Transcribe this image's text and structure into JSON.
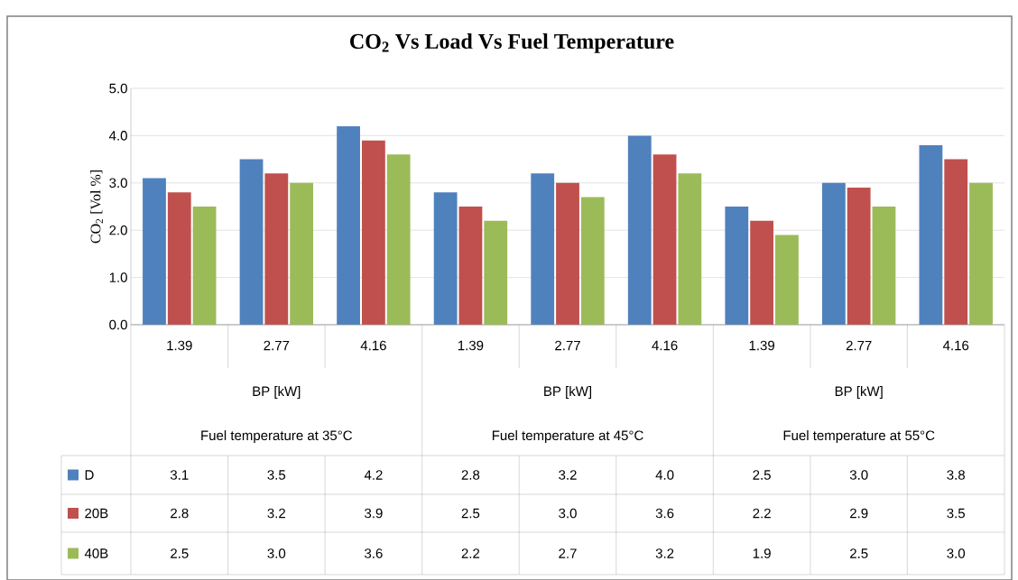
{
  "chart_data": {
    "type": "bar",
    "title": "CO$_{2}$ Vs Load Vs Fuel Temperature",
    "ylabel": "CO$_{2}$ [Vol %]",
    "xlabel": "BP [kW]",
    "categories": [
      "1.39",
      "2.77",
      "4.16",
      "1.39",
      "2.77",
      "4.16",
      "1.39",
      "2.77",
      "4.16"
    ],
    "annotations": [
      "Fuel temperature at 35°C",
      "Fuel temperature at 45°C",
      "Fuel temperature at 55°C"
    ],
    "series": [
      {
        "name": "D",
        "color": "#4f81bd",
        "values": [
          3.1,
          3.5,
          4.2,
          2.8,
          3.2,
          4.0,
          2.5,
          3.0,
          3.8
        ],
        "value_labels": [
          "3.1",
          "3.5",
          "4.2",
          "2.8",
          "3.2",
          "4.0",
          "2.5",
          "3.0",
          "3.8"
        ]
      },
      {
        "name": "20B",
        "color": "#c0504d",
        "values": [
          2.8,
          3.2,
          3.9,
          2.5,
          3.0,
          3.6,
          2.2,
          2.9,
          3.5
        ],
        "value_labels": [
          "2.8",
          "3.2",
          "3.9",
          "2.5",
          "3.0",
          "3.6",
          "2.2",
          "2.9",
          "3.5"
        ]
      },
      {
        "name": "40B",
        "color": "#9bbb59",
        "values": [
          2.5,
          3.0,
          3.6,
          2.2,
          2.7,
          3.2,
          1.9,
          2.5,
          3.0
        ],
        "value_labels": [
          "2.5",
          "3.0",
          "3.6",
          "2.2",
          "2.7",
          "3.2",
          "1.9",
          "2.5",
          "3.0"
        ]
      }
    ],
    "ylim": [
      0,
      5
    ],
    "yticks": [
      {
        "value": 0,
        "label": "0.0"
      },
      {
        "value": 1,
        "label": "1.0"
      },
      {
        "value": 2,
        "label": "2.0"
      },
      {
        "value": 3,
        "label": "3.0"
      },
      {
        "value": 4,
        "label": "4.0"
      },
      {
        "value": 5,
        "label": "5.0"
      }
    ],
    "grid": "y",
    "legend": "bottom left"
  }
}
